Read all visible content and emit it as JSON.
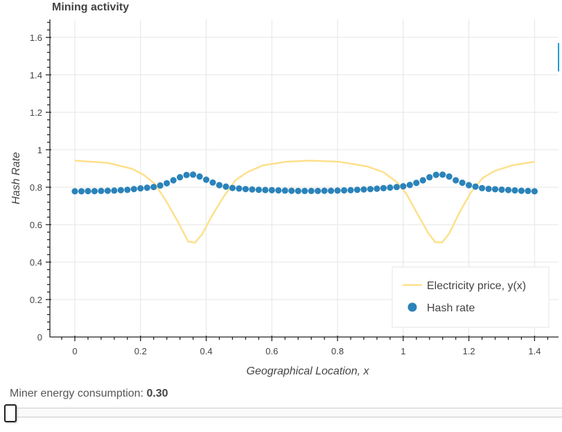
{
  "chart_data": {
    "type": "line+scatter",
    "title": "Mining activity",
    "xlabel": "Geographical Location, x",
    "ylabel": "Hash Rate",
    "xlim": [
      -0.076,
      1.473
    ],
    "ylim": [
      0,
      1.696
    ],
    "xticks": [
      "0",
      "0.2",
      "0.4",
      "0.6",
      "0.8",
      "1",
      "1.2",
      "1.4"
    ],
    "xtick_values": [
      0,
      0.2,
      0.4,
      0.6,
      0.8,
      1,
      1.2,
      1.4
    ],
    "yticks": [
      "0",
      "0.2",
      "0.4",
      "0.6",
      "0.8",
      "1",
      "1.2",
      "1.4",
      "1.6"
    ],
    "ytick_values": [
      0,
      0.2,
      0.4,
      0.6,
      0.8,
      1,
      1.2,
      1.4,
      1.6
    ],
    "grid": true,
    "legend_placement": "bottom-right",
    "series": [
      {
        "name": "Electricity price, y(x)",
        "type": "line",
        "color": "#fee08b",
        "x": [
          0,
          0.1,
          0.173,
          0.208,
          0.243,
          0.278,
          0.314,
          0.345,
          0.366,
          0.387,
          0.419,
          0.454,
          0.489,
          0.525,
          0.574,
          0.644,
          0.714,
          0.806,
          0.89,
          0.94,
          0.982,
          1.01,
          1.045,
          1.077,
          1.098,
          1.119,
          1.14,
          1.171,
          1.207,
          1.242,
          1.277,
          1.333,
          1.4
        ],
        "y": [
          0.942,
          0.93,
          0.899,
          0.868,
          0.819,
          0.726,
          0.615,
          0.51,
          0.504,
          0.547,
          0.652,
          0.751,
          0.837,
          0.88,
          0.917,
          0.936,
          0.942,
          0.936,
          0.911,
          0.88,
          0.825,
          0.763,
          0.652,
          0.553,
          0.506,
          0.506,
          0.553,
          0.664,
          0.775,
          0.849,
          0.886,
          0.917,
          0.936
        ]
      },
      {
        "name": "Hash rate",
        "type": "scatter",
        "color": "#2b83ba",
        "x_start": 0,
        "x_step": 0.02,
        "y": [
          0.778,
          0.778,
          0.779,
          0.779,
          0.78,
          0.781,
          0.782,
          0.784,
          0.786,
          0.79,
          0.794,
          0.797,
          0.801,
          0.809,
          0.821,
          0.837,
          0.853,
          0.865,
          0.867,
          0.857,
          0.84,
          0.825,
          0.811,
          0.803,
          0.796,
          0.793,
          0.79,
          0.788,
          0.786,
          0.785,
          0.784,
          0.783,
          0.782,
          0.781,
          0.78,
          0.78,
          0.78,
          0.78,
          0.781,
          0.781,
          0.782,
          0.783,
          0.784,
          0.786,
          0.788,
          0.79,
          0.792,
          0.795,
          0.798,
          0.801,
          0.805,
          0.812,
          0.823,
          0.837,
          0.853,
          0.866,
          0.867,
          0.857,
          0.837,
          0.824,
          0.811,
          0.803,
          0.795,
          0.791,
          0.789,
          0.787,
          0.785,
          0.783,
          0.781,
          0.78,
          0.778
        ]
      }
    ]
  },
  "slider": {
    "label": "Miner energy consumption: ",
    "value": "0.30",
    "fraction": 0.0
  },
  "accent_color": "#1f9bd1"
}
